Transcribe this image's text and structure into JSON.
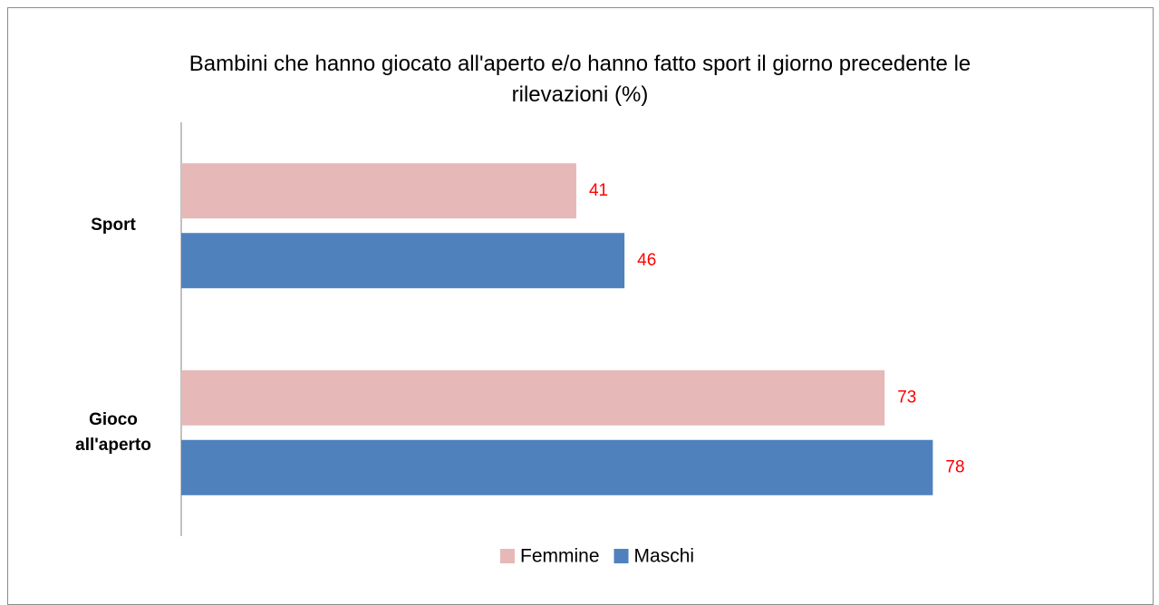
{
  "chart_data": {
    "type": "barh",
    "title": "Bambini che hanno giocato all'aperto e/o hanno fatto sport il giorno precedente le rilevazioni (%)",
    "categories": [
      "Sport",
      "Gioco all'aperto"
    ],
    "series": [
      {
        "name": "Femmine",
        "color": "#e6b9b8",
        "values": [
          41,
          73
        ]
      },
      {
        "name": "Maschi",
        "color": "#4f81bd",
        "values": [
          46,
          78
        ]
      }
    ],
    "xlim": [
      0,
      90
    ],
    "legend": "bottom"
  }
}
